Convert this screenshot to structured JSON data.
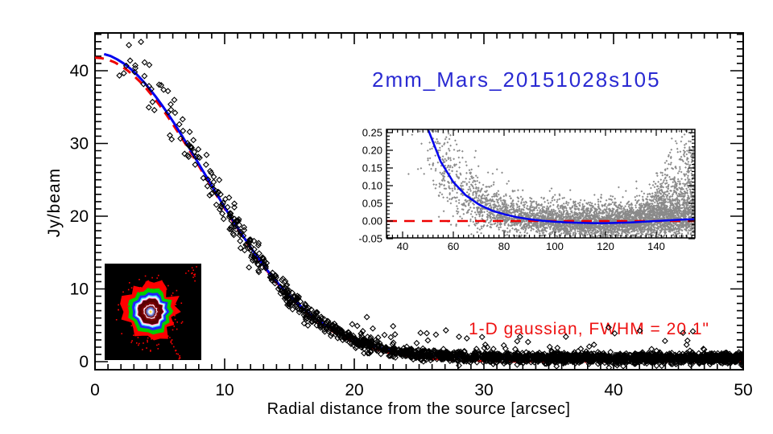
{
  "chart_data": [
    {
      "id": "main-profile",
      "type": "scatter",
      "title": "2mm_Mars_20151028s105",
      "title_color": "#2a2ad2",
      "annotation": "1-D gaussian, FWHM = 20.1\"",
      "annotation_color": "#ee1111",
      "xlabel": "Radial distance from the source [arcsec]",
      "ylabel": "Jy/beam",
      "xlim": [
        0,
        50
      ],
      "ylim": [
        -1.1,
        45.2
      ],
      "xticks": [
        0,
        10,
        20,
        30,
        40,
        50
      ],
      "yticks": [
        0,
        10,
        20,
        30,
        40
      ],
      "series": [
        {
          "name": "observed-radial-profile",
          "type": "line",
          "color": "#0000ee",
          "width": 3,
          "x": [
            0,
            1,
            2,
            3,
            4,
            5,
            6,
            7,
            8,
            9,
            10,
            11,
            12,
            13,
            14,
            15,
            16,
            17,
            18,
            19,
            20,
            21,
            22,
            23,
            24,
            25,
            26,
            27,
            28,
            29,
            30,
            31,
            32,
            33,
            34,
            35,
            36,
            37,
            38,
            39,
            40,
            41,
            42,
            43,
            44,
            45,
            46,
            47,
            48,
            49,
            50
          ],
          "y": [
            42.5,
            42.2,
            41.3,
            39.9,
            38.0,
            35.7,
            33.1,
            30.2,
            27.2,
            24.2,
            21.2,
            18.4,
            15.7,
            13.2,
            11.0,
            9.1,
            7.4,
            5.9,
            4.8,
            3.8,
            3.0,
            2.4,
            1.9,
            1.5,
            1.2,
            1.0,
            0.85,
            0.73,
            0.67,
            0.63,
            0.6,
            0.58,
            0.57,
            0.56,
            0.55,
            0.54,
            0.53,
            0.52,
            0.51,
            0.5,
            0.5,
            0.49,
            0.48,
            0.48,
            0.47,
            0.47,
            0.46,
            0.46,
            0.45,
            0.45,
            0.44
          ]
        },
        {
          "name": "gaussian-fit",
          "type": "line",
          "style": "dashed",
          "color": "#ee0000",
          "width": 3,
          "gaussian": {
            "amplitude": 41.8,
            "fwhm_arcsec": 20.1,
            "center": 0
          }
        },
        {
          "name": "map-samples",
          "type": "scatter",
          "marker": "open-diamond",
          "color": "#000000",
          "count": 2200,
          "seed": 11,
          "sigma_floor": 0.33,
          "sigma_scale": 0.045,
          "outliers": {
            "count": 55,
            "seed": 12,
            "x_min": 19,
            "x_max": 47,
            "lift": 0.4,
            "spread": 1.6
          }
        }
      ]
    },
    {
      "id": "residual-inset",
      "type": "scatter",
      "xlim": [
        33.7,
        155.2
      ],
      "ylim": [
        -0.052,
        0.259
      ],
      "xticks": [
        40,
        60,
        80,
        100,
        120,
        140
      ],
      "yticks": [
        -0.05,
        0,
        0.05,
        0.1,
        0.15,
        0.2,
        0.25
      ],
      "ytick_labels": [
        "-0.05",
        "0.00",
        "0.05",
        "0.10",
        "0.15",
        "0.20",
        "0.25"
      ],
      "series": [
        {
          "name": "residual-profile",
          "type": "line",
          "color": "#0000ee",
          "width": 2.5,
          "x": [
            34,
            40,
            45,
            50,
            55,
            60,
            65,
            70,
            75,
            80,
            85,
            90,
            95,
            100,
            105,
            110,
            115,
            120,
            125,
            130,
            135,
            140,
            145,
            150,
            155
          ],
          "y": [
            1.15,
            0.62,
            0.4,
            0.26,
            0.168,
            0.11,
            0.072,
            0.047,
            0.03,
            0.019,
            0.011,
            0.005,
            0.001,
            -0.002,
            -0.004,
            -0.005,
            -0.006,
            -0.006,
            -0.005,
            -0.004,
            -0.002,
            0.0,
            0.002,
            0.004,
            0.005
          ]
        },
        {
          "name": "zero-line",
          "type": "line",
          "style": "dashed",
          "color": "#ee0000",
          "width": 2.5,
          "y_const": 0
        },
        {
          "name": "residual-samples",
          "type": "scatter",
          "marker": "diamond",
          "color": "#8a8a8a",
          "count": 5200,
          "seed": 13,
          "sigma_floor": 0.018,
          "sigma_scale": 0.33,
          "spray": {
            "x_start": 132,
            "scale": 0.13
          }
        }
      ]
    },
    {
      "id": "source-map-inset",
      "type": "image-map",
      "background": "#000000",
      "contours": [
        {
          "name": "outer-noise-red",
          "color": "#ff0000",
          "r": 34,
          "irr": 0.5
        },
        {
          "name": "contour-green",
          "color": "#00cc00",
          "r": 27,
          "irr": 0.3
        },
        {
          "name": "contour-blue",
          "color": "#2222ff",
          "r": 22,
          "irr": 0.28
        },
        {
          "name": "contour-cyan",
          "color": "#55ddff",
          "r": 19,
          "irr": 0.26
        },
        {
          "name": "contour-white",
          "color": "#ffffff",
          "r": 17.5,
          "irr": 0.25
        },
        {
          "name": "contour-pink",
          "color": "#ff88cc",
          "r": 16.3,
          "irr": 0.24
        },
        {
          "name": "core-maroon",
          "color": "#5a0000",
          "r": 15.3,
          "irr": 0.24
        },
        {
          "name": "core-dark-red",
          "color": "#7a0000",
          "r": 11,
          "irr": 0.3
        },
        {
          "name": "inner-pink-ring",
          "color": "#ffddee",
          "r": 8.5,
          "irr": 0.28
        },
        {
          "name": "inner-dark-red",
          "color": "#801515",
          "r": 7.2,
          "irr": 0.2
        },
        {
          "name": "core-blue-ring",
          "color": "#5566bb",
          "r": 5.6,
          "irr": 0.15
        },
        {
          "name": "core-lavender",
          "color": "#aab4e8",
          "r": 4.0,
          "irr": 0.12
        },
        {
          "name": "core-white",
          "color": "#ffffff",
          "r": 2.6,
          "irr": 0.1
        },
        {
          "name": "core-yellow-peak",
          "color": "#ffe24a",
          "r": 1.5,
          "irr": 0.0
        }
      ],
      "speckles": {
        "color": "#ff0000",
        "seed": 5,
        "ring_count": 80,
        "corner_count": 12,
        "streak": {
          "from": [
            78,
            88
          ],
          "to": [
            93,
            118
          ],
          "count": 16
        }
      }
    }
  ]
}
